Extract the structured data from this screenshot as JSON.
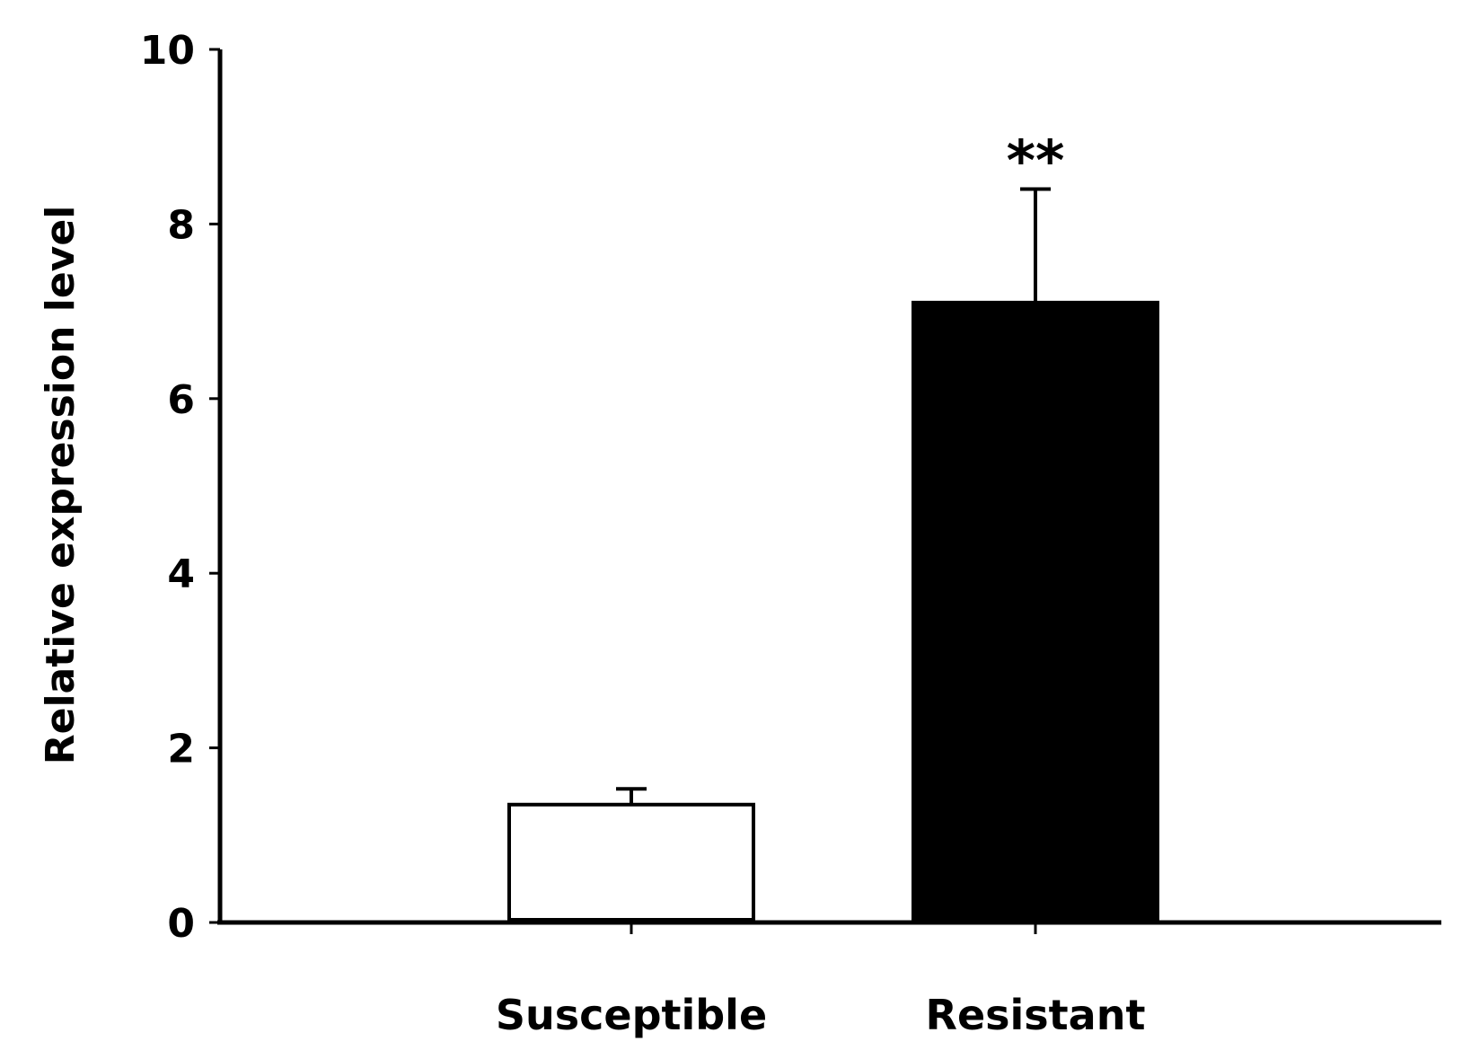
{
  "chart_data": {
    "type": "bar",
    "title": "",
    "xlabel": "",
    "ylabel": "Relative expression level",
    "ylim": [
      0,
      10
    ],
    "yticks": [
      "0",
      "2",
      "4",
      "6",
      "8",
      "10"
    ],
    "categories": [
      "Susceptible",
      "Resistant"
    ],
    "values": [
      1.35,
      7.1
    ],
    "errors": [
      0.18,
      1.3
    ],
    "bar_fill": [
      "#ffffff",
      "#000000"
    ],
    "bar_stroke": "#000000",
    "annotations": [
      {
        "category": "Resistant",
        "text": "**"
      }
    ],
    "grid": false,
    "legend": "none"
  }
}
